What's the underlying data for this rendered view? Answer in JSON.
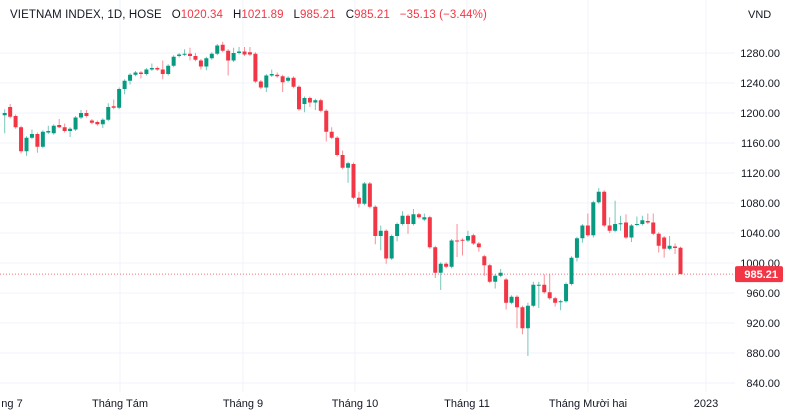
{
  "legend": {
    "symbol": "VIETNAM INDEX, 1D, HOSE",
    "open_label": "O",
    "open": "1020.34",
    "high_label": "H",
    "high": "1021.89",
    "low_label": "L",
    "low": "985.21",
    "close_label": "C",
    "close": "985.21",
    "change": "−35.13 (−3.44%)"
  },
  "colors": {
    "up": "#089981",
    "down": "#f23645",
    "grid": "#f0f3fa",
    "text": "#131722"
  },
  "chart_data": {
    "type": "candlestick",
    "title": "VIETNAM INDEX, 1D, HOSE",
    "y_unit": "VND",
    "ylim": [
      833,
      1300
    ],
    "yticks": [
      840,
      880,
      920,
      960,
      1000,
      1040,
      1080,
      1120,
      1160,
      1200,
      1240,
      1280
    ],
    "ytick_labels": [
      "840.00",
      "880.00",
      "920.00",
      "960.00",
      "1000.00",
      "1040.00",
      "1080.00",
      "1120.00",
      "1160.00",
      "1200.00",
      "1240.00",
      "1280.00"
    ],
    "xtick_labels": [
      "ng 7",
      "Tháng Tám",
      "Tháng 9",
      "Tháng 10",
      "Tháng 11",
      "Tháng Mười hai",
      "2023"
    ],
    "last_price": 985.21,
    "last_price_label": "985.21",
    "grid": true,
    "ohlc_fields": [
      "open",
      "high",
      "low",
      "close"
    ],
    "candles": [
      [
        1197,
        1205,
        1173,
        1200
      ],
      [
        1208,
        1212,
        1193,
        1195
      ],
      [
        1196,
        1198,
        1179,
        1181
      ],
      [
        1181,
        1183,
        1146,
        1149
      ],
      [
        1149,
        1169,
        1143,
        1167
      ],
      [
        1167,
        1178,
        1165,
        1172
      ],
      [
        1172,
        1174,
        1147,
        1155
      ],
      [
        1155,
        1177,
        1153,
        1175
      ],
      [
        1174,
        1183,
        1172,
        1176
      ],
      [
        1173,
        1185,
        1171,
        1183
      ],
      [
        1184,
        1192,
        1180,
        1181
      ],
      [
        1181,
        1186,
        1174,
        1176
      ],
      [
        1176,
        1181,
        1168,
        1179
      ],
      [
        1178,
        1196,
        1176,
        1194
      ],
      [
        1194,
        1204,
        1192,
        1200
      ],
      [
        1200,
        1204,
        1194,
        1196
      ],
      [
        1190,
        1192,
        1185,
        1187
      ],
      [
        1188,
        1190,
        1183,
        1185
      ],
      [
        1185,
        1193,
        1180,
        1191
      ],
      [
        1191,
        1213,
        1189,
        1208
      ],
      [
        1209,
        1218,
        1205,
        1207
      ],
      [
        1207,
        1234,
        1205,
        1232
      ],
      [
        1232,
        1245,
        1225,
        1243
      ],
      [
        1243,
        1253,
        1238,
        1251
      ],
      [
        1251,
        1256,
        1249,
        1254
      ],
      [
        1254,
        1256,
        1246,
        1252
      ],
      [
        1252,
        1260,
        1250,
        1258
      ],
      [
        1258,
        1266,
        1256,
        1260
      ],
      [
        1260,
        1262,
        1256,
        1258
      ],
      [
        1258,
        1270,
        1245,
        1252
      ],
      [
        1252,
        1265,
        1250,
        1263
      ],
      [
        1263,
        1277,
        1261,
        1275
      ],
      [
        1276,
        1280,
        1274,
        1278
      ],
      [
        1278,
        1285,
        1276,
        1279
      ],
      [
        1279,
        1287,
        1270,
        1276
      ],
      [
        1276,
        1280,
        1269,
        1271
      ],
      [
        1270,
        1272,
        1258,
        1262
      ],
      [
        1262,
        1275,
        1257,
        1273
      ],
      [
        1273,
        1281,
        1271,
        1279
      ],
      [
        1279,
        1292,
        1277,
        1290
      ],
      [
        1291,
        1295,
        1281,
        1283
      ],
      [
        1283,
        1285,
        1250,
        1270
      ],
      [
        1270,
        1287,
        1268,
        1280
      ],
      [
        1280,
        1288,
        1278,
        1282
      ],
      [
        1282,
        1288,
        1276,
        1278
      ],
      [
        1281,
        1288,
        1276,
        1278
      ],
      [
        1279,
        1281,
        1240,
        1242
      ],
      [
        1242,
        1244,
        1232,
        1234
      ],
      [
        1234,
        1252,
        1228,
        1250
      ],
      [
        1250,
        1258,
        1248,
        1252
      ],
      [
        1251,
        1254,
        1247,
        1249
      ],
      [
        1249,
        1251,
        1228,
        1241
      ],
      [
        1243,
        1249,
        1241,
        1247
      ],
      [
        1247,
        1249,
        1233,
        1235
      ],
      [
        1235,
        1237,
        1203,
        1205
      ],
      [
        1212,
        1222,
        1201,
        1220
      ],
      [
        1220,
        1222,
        1208,
        1214
      ],
      [
        1214,
        1219,
        1204,
        1217
      ],
      [
        1217,
        1219,
        1201,
        1203
      ],
      [
        1203,
        1205,
        1162,
        1175
      ],
      [
        1175,
        1181,
        1165,
        1167
      ],
      [
        1167,
        1169,
        1142,
        1144
      ],
      [
        1144,
        1150,
        1125,
        1127
      ],
      [
        1127,
        1135,
        1107,
        1133
      ],
      [
        1132,
        1134,
        1085,
        1087
      ],
      [
        1087,
        1095,
        1074,
        1079
      ],
      [
        1079,
        1108,
        1077,
        1106
      ],
      [
        1106,
        1108,
        1073,
        1075
      ],
      [
        1075,
        1077,
        1025,
        1036
      ],
      [
        1036,
        1050,
        1017,
        1043
      ],
      [
        1043,
        1045,
        999,
        1006
      ],
      [
        1006,
        1038,
        1004,
        1036
      ],
      [
        1036,
        1054,
        1029,
        1052
      ],
      [
        1052,
        1069,
        1050,
        1063
      ],
      [
        1063,
        1065,
        1039,
        1052
      ],
      [
        1052,
        1072,
        1050,
        1065
      ],
      [
        1065,
        1067,
        1059,
        1061
      ],
      [
        1058,
        1066,
        1056,
        1061
      ],
      [
        1061,
        1063,
        1019,
        1021
      ],
      [
        1021,
        1023,
        980,
        987
      ],
      [
        987,
        1001,
        964,
        999
      ],
      [
        999,
        1001,
        993,
        995
      ],
      [
        995,
        1032,
        993,
        1030
      ],
      [
        1030,
        1052,
        1008,
        1029
      ],
      [
        1031,
        1033,
        1010,
        1030
      ],
      [
        1030,
        1043,
        1028,
        1036
      ],
      [
        1037,
        1039,
        1024,
        1026
      ],
      [
        1026,
        1028,
        1015,
        1021
      ],
      [
        1009,
        1011,
        983,
        997
      ],
      [
        997,
        999,
        973,
        975
      ],
      [
        975,
        985,
        966,
        983
      ],
      [
        983,
        992,
        981,
        987
      ],
      [
        978,
        980,
        938,
        947
      ],
      [
        947,
        957,
        945,
        955
      ],
      [
        955,
        957,
        913,
        941
      ],
      [
        941,
        943,
        905,
        913
      ],
      [
        913,
        947,
        876,
        943
      ],
      [
        943,
        975,
        941,
        971
      ],
      [
        970,
        975,
        940,
        971
      ],
      [
        971,
        985,
        959,
        961
      ],
      [
        961,
        985,
        951,
        953
      ],
      [
        953,
        955,
        942,
        947
      ],
      [
        948,
        951,
        937,
        949
      ],
      [
        949,
        974,
        947,
        972
      ],
      [
        972,
        1009,
        970,
        1007
      ],
      [
        1007,
        1035,
        1002,
        1033
      ],
      [
        1033,
        1052,
        1027,
        1050
      ],
      [
        1050,
        1066,
        1035,
        1037
      ],
      [
        1037,
        1083,
        1034,
        1081
      ],
      [
        1081,
        1100,
        1079,
        1095
      ],
      [
        1095,
        1097,
        1048,
        1050
      ],
      [
        1050,
        1061,
        1040,
        1043
      ],
      [
        1043,
        1083,
        1041,
        1052
      ],
      [
        1052,
        1063,
        1043,
        1053
      ],
      [
        1054,
        1065,
        1032,
        1034
      ],
      [
        1034,
        1052,
        1028,
        1050
      ],
      [
        1051,
        1062,
        1049,
        1052
      ],
      [
        1052,
        1063,
        1050,
        1057
      ],
      [
        1056,
        1066,
        1052,
        1054
      ],
      [
        1054,
        1066,
        1037,
        1039
      ],
      [
        1039,
        1041,
        1014,
        1023
      ],
      [
        1034,
        1036,
        1007,
        1019
      ],
      [
        1019,
        1036,
        1017,
        1023
      ],
      [
        1022,
        1026,
        1012,
        1020
      ],
      [
        1020.34,
        1021.89,
        985.21,
        985.21
      ]
    ]
  }
}
